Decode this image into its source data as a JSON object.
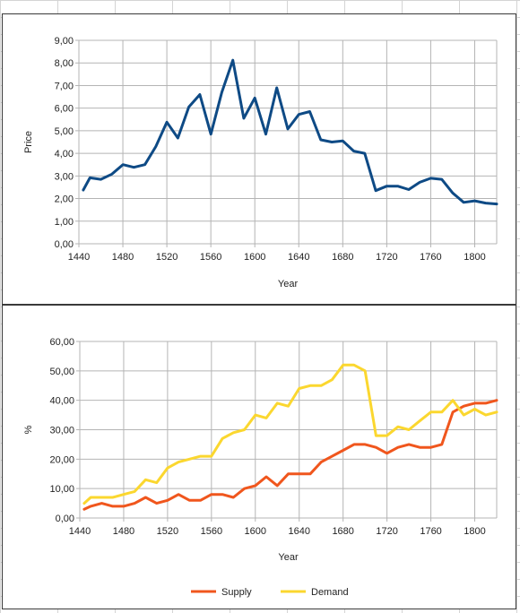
{
  "chart_data": [
    {
      "type": "line",
      "title": "",
      "xlabel": "Year",
      "ylabel": "Price",
      "xlim": [
        1440,
        1820
      ],
      "ylim": [
        0,
        9
      ],
      "x_ticks": [
        "1440",
        "1480",
        "1520",
        "1560",
        "1600",
        "1640",
        "1680",
        "1720",
        "1760",
        "1800"
      ],
      "y_ticks": [
        "0,00",
        "1,00",
        "2,00",
        "3,00",
        "4,00",
        "5,00",
        "6,00",
        "7,00",
        "8,00",
        "9,00"
      ],
      "grid": true,
      "series": [
        {
          "color": "#0e4a85",
          "x": [
            1444,
            1450,
            1460,
            1470,
            1480,
            1490,
            1500,
            1510,
            1520,
            1530,
            1540,
            1550,
            1560,
            1570,
            1580,
            1590,
            1600,
            1610,
            1620,
            1630,
            1640,
            1650,
            1660,
            1670,
            1680,
            1690,
            1700,
            1710,
            1720,
            1730,
            1740,
            1750,
            1760,
            1770,
            1780,
            1790,
            1800,
            1810,
            1820
          ],
          "values": [
            2.38,
            2.92,
            2.85,
            3.08,
            3.5,
            3.38,
            3.5,
            4.3,
            5.38,
            4.68,
            6.05,
            6.6,
            4.85,
            6.7,
            8.12,
            5.55,
            6.45,
            4.85,
            6.9,
            5.08,
            5.72,
            5.85,
            4.6,
            4.5,
            4.55,
            4.1,
            4.0,
            2.35,
            2.55,
            2.55,
            2.4,
            2.72,
            2.9,
            2.85,
            2.25,
            1.83,
            1.9,
            1.8,
            1.76
          ]
        }
      ]
    },
    {
      "type": "line",
      "title": "",
      "xlabel": "Year",
      "ylabel": "%",
      "xlim": [
        1440,
        1820
      ],
      "ylim": [
        0,
        60
      ],
      "x_ticks": [
        "1440",
        "1480",
        "1520",
        "1560",
        "1600",
        "1640",
        "1680",
        "1720",
        "1760",
        "1800"
      ],
      "y_ticks": [
        "0,00",
        "10,00",
        "20,00",
        "30,00",
        "40,00",
        "50,00",
        "60,00"
      ],
      "grid": true,
      "legend": "bottom",
      "series": [
        {
          "name": "Supply",
          "color": "#f0561d",
          "x": [
            1444,
            1450,
            1460,
            1470,
            1480,
            1490,
            1500,
            1510,
            1520,
            1530,
            1540,
            1550,
            1560,
            1570,
            1580,
            1590,
            1600,
            1610,
            1620,
            1630,
            1640,
            1650,
            1660,
            1670,
            1680,
            1690,
            1700,
            1710,
            1720,
            1730,
            1740,
            1750,
            1760,
            1770,
            1780,
            1790,
            1800,
            1810,
            1820
          ],
          "values": [
            3,
            4,
            5,
            4,
            4,
            5,
            7,
            5,
            6,
            8,
            6,
            6,
            8,
            8,
            7,
            10,
            11,
            14,
            11,
            15,
            15,
            15,
            19,
            21,
            23,
            25,
            25,
            24,
            22,
            24,
            25,
            24,
            24,
            25,
            36,
            38,
            39,
            39,
            40
          ]
        },
        {
          "name": "Demand",
          "color": "#fbd72f",
          "x": [
            1444,
            1450,
            1460,
            1470,
            1480,
            1490,
            1500,
            1510,
            1520,
            1530,
            1540,
            1550,
            1560,
            1570,
            1580,
            1590,
            1600,
            1610,
            1620,
            1630,
            1640,
            1650,
            1660,
            1670,
            1680,
            1690,
            1700,
            1710,
            1720,
            1730,
            1740,
            1750,
            1760,
            1770,
            1780,
            1790,
            1800,
            1810,
            1820
          ],
          "values": [
            5,
            7,
            7,
            7,
            8,
            9,
            13,
            12,
            17,
            19,
            20,
            21,
            21,
            27,
            29,
            30,
            35,
            34,
            39,
            38,
            44,
            45,
            45,
            47,
            52,
            52,
            50,
            28,
            28,
            31,
            30,
            33,
            36,
            36,
            40,
            35,
            37,
            35,
            36
          ]
        }
      ]
    }
  ]
}
